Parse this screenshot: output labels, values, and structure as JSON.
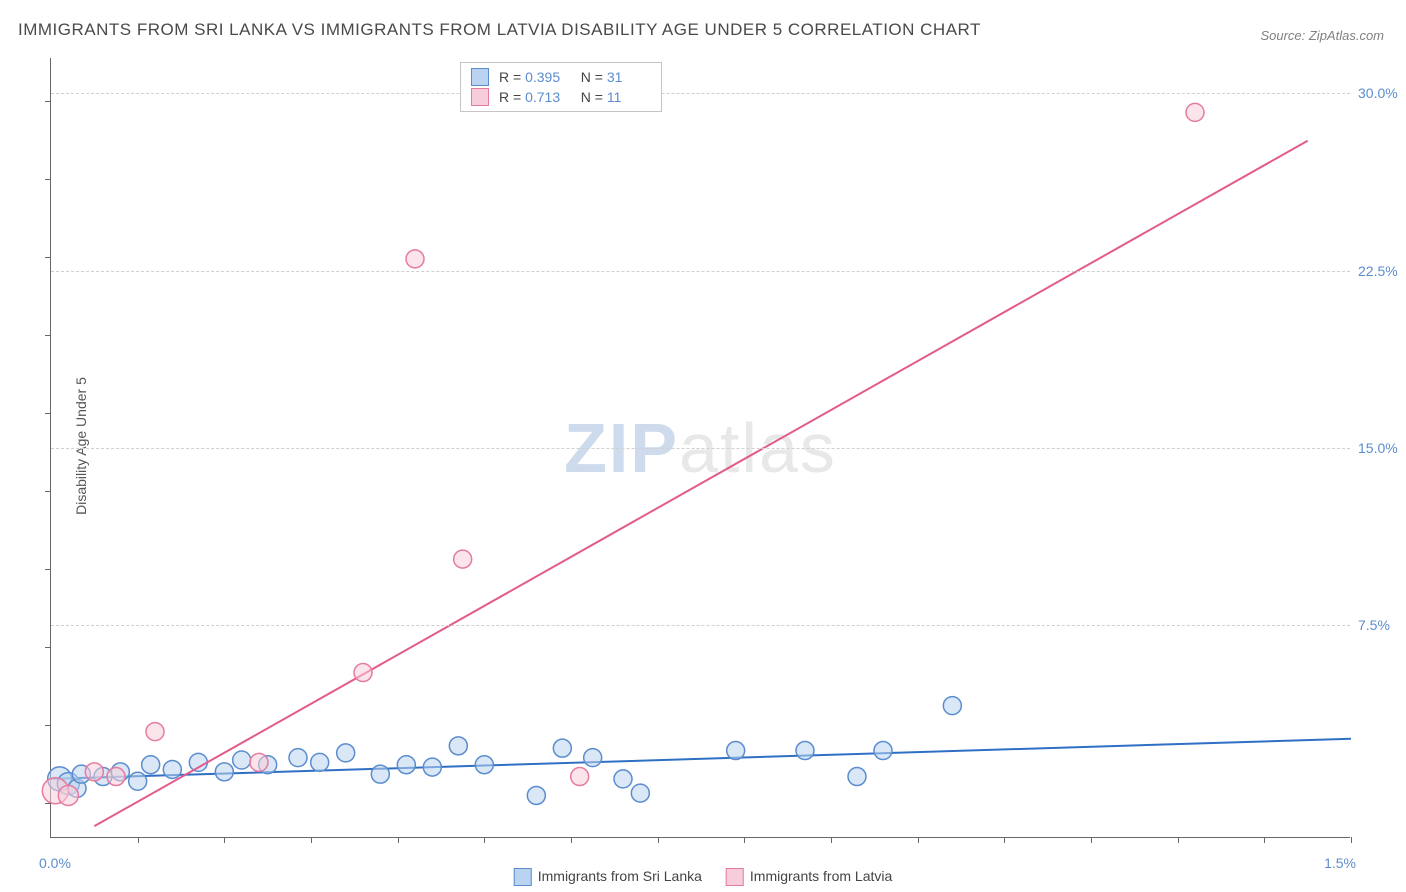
{
  "title": "IMMIGRANTS FROM SRI LANKA VS IMMIGRANTS FROM LATVIA DISABILITY AGE UNDER 5 CORRELATION CHART",
  "source": "Source: ZipAtlas.com",
  "ylabel": "Disability Age Under 5",
  "watermark": {
    "zip": "ZIP",
    "atlas": "atlas"
  },
  "chart": {
    "type": "scatter-correlation",
    "background_color": "#ffffff",
    "grid_color": "#d0d0d0",
    "axis_color": "#666666",
    "tick_color": "#5b8dce",
    "xlim": [
      0.0,
      1.5
    ],
    "ylim": [
      -1.5,
      31.5
    ],
    "x_origin_label": "0.0%",
    "x_last_label": "1.5%",
    "y_ticks": [
      {
        "value": 7.5,
        "label": "7.5%"
      },
      {
        "value": 15.0,
        "label": "15.0%"
      },
      {
        "value": 22.5,
        "label": "22.5%"
      },
      {
        "value": 30.0,
        "label": "30.0%"
      }
    ],
    "x_tick_positions": [
      0.1,
      0.2,
      0.3,
      0.4,
      0.5,
      0.6,
      0.7,
      0.8,
      0.9,
      1.0,
      1.1,
      1.2,
      1.3,
      1.4,
      1.5
    ],
    "y_minor_tick_positions": [
      0,
      3.3,
      6.6,
      9.9,
      13.2,
      16.5,
      19.8,
      23.1,
      26.4,
      29.7
    ],
    "marker_radius": 9,
    "marker_stroke_width": 1.5,
    "trend_line_width": 2,
    "series": [
      {
        "name": "Immigrants from Sri Lanka",
        "fill_color": "#b9d3f1",
        "stroke_color": "#5b8dce",
        "line_color": "#2f6fc4",
        "R": "0.395",
        "N": "31",
        "points": [
          {
            "x": 0.01,
            "y": 1.0,
            "r": 12
          },
          {
            "x": 0.02,
            "y": 0.8,
            "r": 11
          },
          {
            "x": 0.03,
            "y": 0.6,
            "r": 9
          },
          {
            "x": 0.035,
            "y": 1.2,
            "r": 9
          },
          {
            "x": 0.06,
            "y": 1.1,
            "r": 9
          },
          {
            "x": 0.08,
            "y": 1.3,
            "r": 9
          },
          {
            "x": 0.1,
            "y": 0.9,
            "r": 9
          },
          {
            "x": 0.115,
            "y": 1.6,
            "r": 9
          },
          {
            "x": 0.14,
            "y": 1.4,
            "r": 9
          },
          {
            "x": 0.17,
            "y": 1.7,
            "r": 9
          },
          {
            "x": 0.2,
            "y": 1.3,
            "r": 9
          },
          {
            "x": 0.22,
            "y": 1.8,
            "r": 9
          },
          {
            "x": 0.25,
            "y": 1.6,
            "r": 9
          },
          {
            "x": 0.285,
            "y": 1.9,
            "r": 9
          },
          {
            "x": 0.31,
            "y": 1.7,
            "r": 9
          },
          {
            "x": 0.34,
            "y": 2.1,
            "r": 9
          },
          {
            "x": 0.38,
            "y": 1.2,
            "r": 9
          },
          {
            "x": 0.41,
            "y": 1.6,
            "r": 9
          },
          {
            "x": 0.44,
            "y": 1.5,
            "r": 9
          },
          {
            "x": 0.47,
            "y": 2.4,
            "r": 9
          },
          {
            "x": 0.5,
            "y": 1.6,
            "r": 9
          },
          {
            "x": 0.56,
            "y": 0.3,
            "r": 9
          },
          {
            "x": 0.59,
            "y": 2.3,
            "r": 9
          },
          {
            "x": 0.625,
            "y": 1.9,
            "r": 9
          },
          {
            "x": 0.66,
            "y": 1.0,
            "r": 9
          },
          {
            "x": 0.68,
            "y": 0.4,
            "r": 9
          },
          {
            "x": 0.79,
            "y": 2.2,
            "r": 9
          },
          {
            "x": 0.87,
            "y": 2.2,
            "r": 9
          },
          {
            "x": 0.93,
            "y": 1.1,
            "r": 9
          },
          {
            "x": 0.96,
            "y": 2.2,
            "r": 9
          },
          {
            "x": 1.04,
            "y": 4.1,
            "r": 9
          }
        ],
        "trend": {
          "x1": 0.0,
          "y1": 1.0,
          "x2": 1.5,
          "y2": 2.7
        }
      },
      {
        "name": "Immigrants from Latvia",
        "fill_color": "#f7cdd9",
        "stroke_color": "#e67ba0",
        "line_color": "#e35a8c",
        "R": "0.713",
        "N": "11",
        "points": [
          {
            "x": 0.005,
            "y": 0.5,
            "r": 13
          },
          {
            "x": 0.02,
            "y": 0.3,
            "r": 10
          },
          {
            "x": 0.05,
            "y": 1.3,
            "r": 9
          },
          {
            "x": 0.075,
            "y": 1.1,
            "r": 9
          },
          {
            "x": 0.12,
            "y": 3.0,
            "r": 9
          },
          {
            "x": 0.24,
            "y": 1.7,
            "r": 9
          },
          {
            "x": 0.36,
            "y": 5.5,
            "r": 9
          },
          {
            "x": 0.42,
            "y": 23.0,
            "r": 9
          },
          {
            "x": 0.475,
            "y": 10.3,
            "r": 9
          },
          {
            "x": 0.61,
            "y": 1.1,
            "r": 9
          },
          {
            "x": 1.32,
            "y": 29.2,
            "r": 9
          }
        ],
        "trend": {
          "x1": 0.05,
          "y1": -1.0,
          "x2": 1.45,
          "y2": 28.0
        }
      }
    ]
  },
  "stats_legend_labels": {
    "R": "R =",
    "N": "N ="
  },
  "bottom_legend": [
    {
      "key": 0
    },
    {
      "key": 1
    }
  ]
}
